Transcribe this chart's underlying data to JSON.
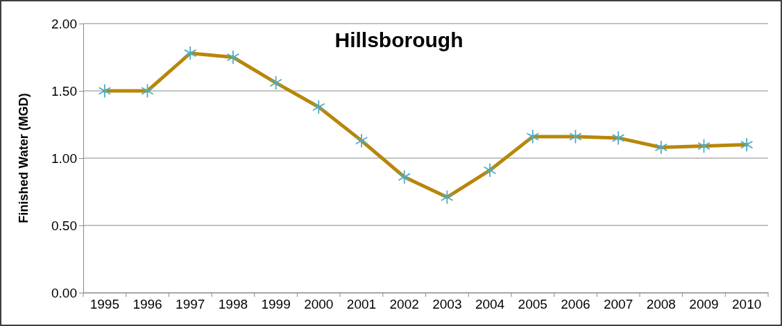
{
  "chart_data": {
    "type": "line",
    "title": "Hillsborough",
    "ylabel": "Finished Water (MGD)",
    "categories": [
      "1995",
      "1996",
      "1997",
      "1998",
      "1999",
      "2000",
      "2001",
      "2002",
      "2003",
      "2004",
      "2005",
      "2006",
      "2007",
      "2008",
      "2009",
      "2010"
    ],
    "series": [
      {
        "color": "#b8860b",
        "values": [
          1.5,
          1.5,
          1.78,
          1.75,
          1.56,
          1.38,
          1.13,
          0.86,
          0.71,
          0.91,
          1.16,
          1.16,
          1.15,
          1.08,
          1.09,
          1.1
        ]
      }
    ],
    "ylim": [
      0,
      2
    ],
    "yticks": [
      {
        "value": 0,
        "label": "0.00"
      },
      {
        "value": 0.5,
        "label": "0.50"
      },
      {
        "value": 1,
        "label": "1.00"
      },
      {
        "value": 1.5,
        "label": "1.50"
      },
      {
        "value": 2,
        "label": "2.00"
      }
    ],
    "grid": "y",
    "marker": "cross",
    "line_style": "solid"
  }
}
